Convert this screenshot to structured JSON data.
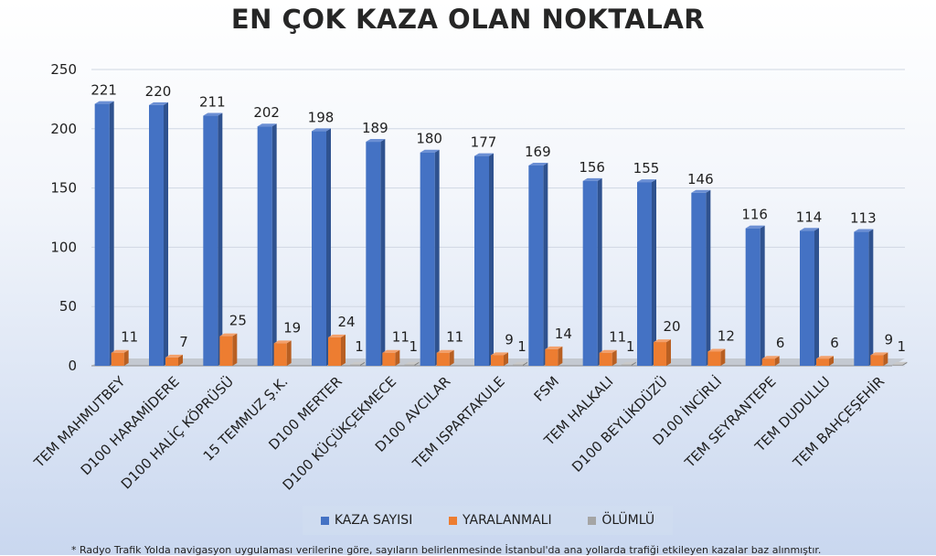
{
  "chart_data": {
    "type": "bar",
    "title": "EN ÇOK KAZA OLAN NOKTALAR",
    "categories": [
      "TEM MAHMUTBEY",
      "D100 HARAMİDERE",
      "D100 HALİÇ KÖPRÜSÜ",
      "15 TEMMUZ Ş.K.",
      "D100 MERTER",
      "D100 KÜÇÜKÇEKMECE",
      "D100 AVCILAR",
      "TEM ISPARTAKULE",
      "FSM",
      "TEM HALKALI",
      "D100 BEYLİKDÜZÜ",
      "D100 İNCİRLİ",
      "TEM SEYRANTEPE",
      "TEM DUDULLU",
      "TEM BAHÇEŞEHİR"
    ],
    "series": [
      {
        "name": "KAZA SAYISI",
        "values": [
          221,
          220,
          211,
          202,
          198,
          189,
          180,
          177,
          169,
          156,
          155,
          146,
          116,
          114,
          113
        ]
      },
      {
        "name": "YARALANMALI",
        "values": [
          11,
          7,
          25,
          19,
          24,
          11,
          11,
          9,
          14,
          11,
          20,
          12,
          6,
          6,
          9
        ]
      },
      {
        "name": "ÖLÜMLÜ",
        "values": [
          null,
          null,
          null,
          null,
          1,
          1,
          null,
          1,
          null,
          1,
          null,
          null,
          null,
          null,
          1
        ]
      }
    ],
    "ylim": [
      0,
      250
    ],
    "yticks": [
      "0",
      "50",
      "100",
      "150",
      "200",
      "250"
    ],
    "grid": true,
    "legend": "bottom",
    "colors": {
      "kaza": "#4472c4",
      "yaralanmali": "#ed7d31",
      "olumlu": "#a5a5a5"
    },
    "footnote": "* Radyo Trafik Yolda navigasyon uygulaması verilerine göre, sayıların belirlenmesinde İstanbul'da ana yollarda trafiği etkileyen kazalar baz alınmıştır."
  }
}
